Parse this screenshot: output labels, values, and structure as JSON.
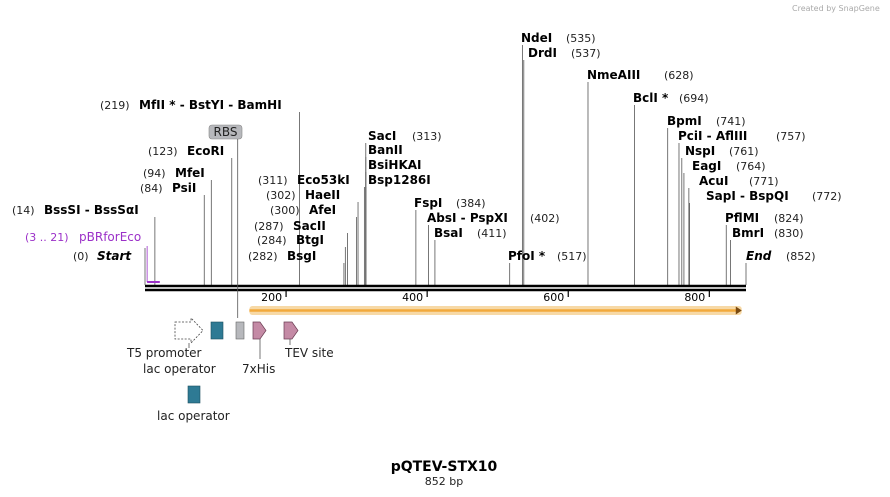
{
  "credit": "Created by SnapGene",
  "map": {
    "title": "pQTEV-STX10",
    "length_label": "852 bp",
    "length_bp": 852
  },
  "ruler": {
    "ticks": [
      200,
      400,
      600,
      800
    ]
  },
  "sites": [
    {
      "pos": "(0)",
      "name": "Start",
      "bp": 0
    },
    {
      "pos": "(14)",
      "name": "BssSI  -  BssSαI",
      "bp": 14
    },
    {
      "pos": "(84)",
      "name": "PsiI",
      "bp": 84
    },
    {
      "pos": "(94)",
      "name": "MfeI",
      "bp": 94
    },
    {
      "pos": "(123)",
      "name": "EcoRI",
      "bp": 123
    },
    {
      "pos": "(219)",
      "name": "MfII *  -  BstYI  -  BamHI",
      "bp": 219
    },
    {
      "pos": "(282)",
      "name": "BsgI",
      "bp": 282
    },
    {
      "pos": "(284)",
      "name": "BtgI",
      "bp": 284
    },
    {
      "pos": "(287)",
      "name": "SacII",
      "bp": 287
    },
    {
      "pos": "(300)",
      "name": "AfeI",
      "bp": 300
    },
    {
      "pos": "(302)",
      "name": "HaeII",
      "bp": 302
    },
    {
      "pos": "(311)",
      "name": "Eco53kI",
      "bp": 311
    },
    {
      "pos": "",
      "name": "Bsp1286I",
      "bp": 313
    },
    {
      "pos": "",
      "name": "BsiHKAI",
      "bp": 313
    },
    {
      "pos": "",
      "name": "BanII",
      "bp": 313
    },
    {
      "pos": "(313)",
      "name": "SacI",
      "bp": 313
    },
    {
      "pos": "(384)",
      "name": "FspI",
      "bp": 384
    },
    {
      "pos": "(402)",
      "name": "AbsI  -  PspXI",
      "bp": 402
    },
    {
      "pos": "(411)",
      "name": "BsaI",
      "bp": 411
    },
    {
      "pos": "(517)",
      "name": "PfoI *",
      "bp": 517
    },
    {
      "pos": "(535)",
      "name": "NdeI",
      "bp": 535
    },
    {
      "pos": "(537)",
      "name": "DrdI",
      "bp": 537
    },
    {
      "pos": "(628)",
      "name": "NmeAIII",
      "bp": 628
    },
    {
      "pos": "(694)",
      "name": "BclI *",
      "bp": 694
    },
    {
      "pos": "(741)",
      "name": "BpmI",
      "bp": 741
    },
    {
      "pos": "(757)",
      "name": "PciI  -  AflIII",
      "bp": 757
    },
    {
      "pos": "(761)",
      "name": "NspI",
      "bp": 761
    },
    {
      "pos": "(764)",
      "name": "EagI",
      "bp": 764
    },
    {
      "pos": "(771)",
      "name": "AcuI",
      "bp": 771
    },
    {
      "pos": "(772)",
      "name": "SapI  -  BspQI",
      "bp": 772
    },
    {
      "pos": "(824)",
      "name": "PflMI",
      "bp": 824
    },
    {
      "pos": "(830)",
      "name": "BmrI",
      "bp": 830
    },
    {
      "pos": "(852)",
      "name": "End",
      "bp": 852
    }
  ],
  "primer": {
    "pos": "(3 .. 21)",
    "name": "pBRforEco",
    "start": 3,
    "end": 21
  },
  "features": [
    {
      "label": "RBS",
      "bp_start": 130,
      "bp_end": 136
    },
    {
      "label": "T5 promoter",
      "bp_start": 44,
      "bp_end": 88
    },
    {
      "label": "lac operator",
      "bp_start": 92,
      "bp_end": 117
    },
    {
      "label": "lac operator",
      "bp_start": 63,
      "bp_end": 88
    },
    {
      "label": "7xHis",
      "bp_start": 155,
      "bp_end": 176
    },
    {
      "label": "TEV site",
      "bp_start": 196,
      "bp_end": 217
    }
  ],
  "orf": {
    "bp_start": 148,
    "bp_end": 846
  },
  "colors": {
    "backbone": "#000000",
    "primer": "#9b30c8",
    "rbs_fill": "#b7b8bc",
    "lac_fill": "#2e7a94",
    "his_fill": "#c48aa5",
    "orf_fill": "#f2a93b",
    "orf_glow": "#f7d9a6"
  }
}
